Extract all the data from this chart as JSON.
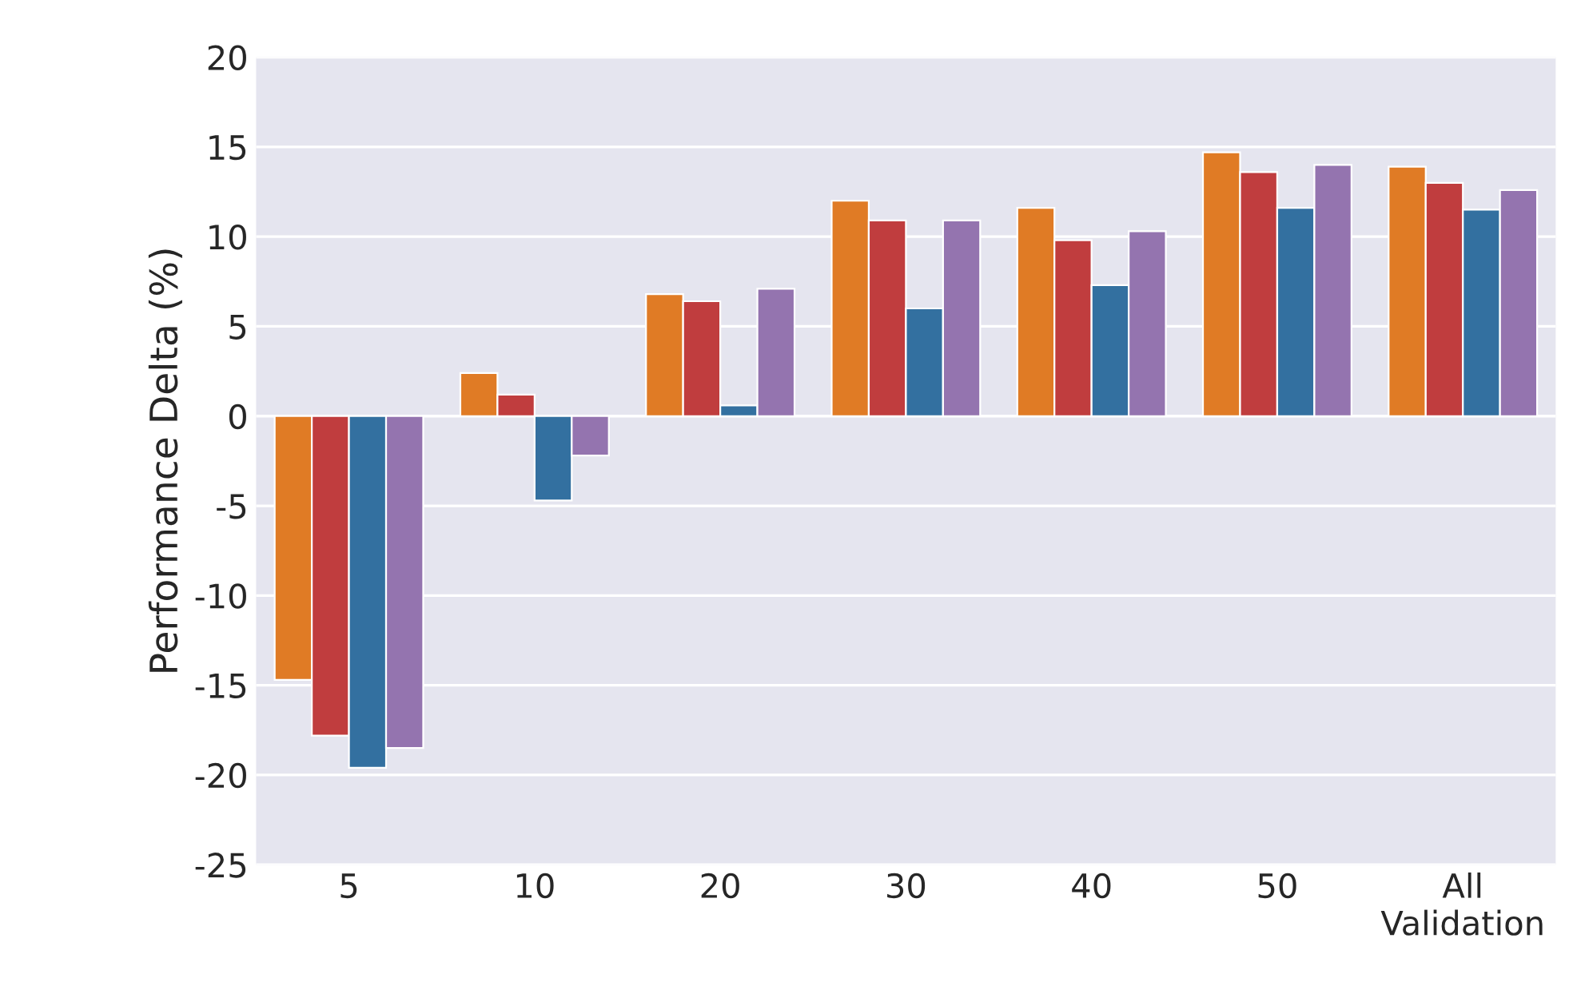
{
  "chart_data": {
    "type": "bar",
    "ylabel": "Performance Delta (%)",
    "categories": [
      "5",
      "10",
      "20",
      "30",
      "40",
      "50",
      "All\nValidation"
    ],
    "series": [
      {
        "color": "#e07b25",
        "values": [
          -14.7,
          2.4,
          6.8,
          12.0,
          11.6,
          14.7,
          13.9
        ]
      },
      {
        "color": "#c03d3e",
        "values": [
          -17.8,
          1.2,
          6.4,
          10.9,
          9.8,
          13.6,
          13.0
        ]
      },
      {
        "color": "#3370a0",
        "values": [
          -19.6,
          -4.7,
          0.6,
          6.0,
          7.3,
          11.6,
          11.5
        ]
      },
      {
        "color": "#9474af",
        "values": [
          -18.5,
          -2.2,
          7.1,
          10.9,
          10.3,
          14.0,
          12.6
        ]
      }
    ],
    "ylim": [
      -25,
      20
    ],
    "yticks": [
      -25,
      -20,
      -15,
      -10,
      -5,
      0,
      5,
      10,
      15,
      20
    ],
    "grid": "y",
    "legend": false
  }
}
